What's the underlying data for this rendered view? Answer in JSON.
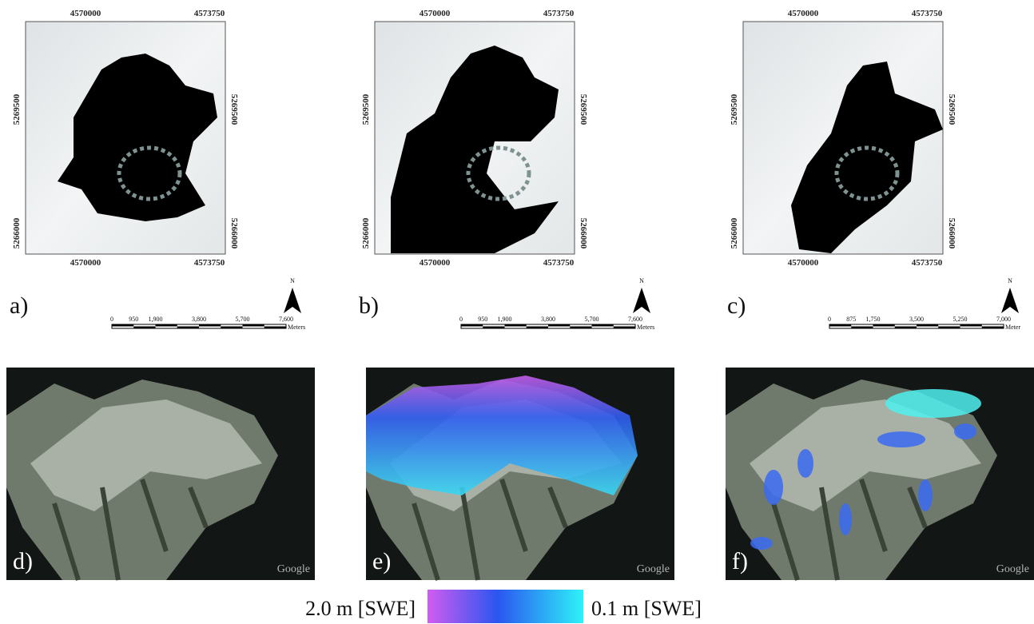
{
  "maps": [
    {
      "label": "a)",
      "top_ticks": [
        "4570000",
        "4573750"
      ],
      "bottom_ticks": [
        "4570000",
        "4573750"
      ],
      "left_ticks": [
        "5269500",
        "5266000"
      ],
      "right_ticks": [
        "5269500",
        "5266000"
      ],
      "north": "N",
      "scale_ticks": [
        "0",
        "950",
        "1,900",
        "3,800",
        "5,700",
        "7,600"
      ],
      "scale_unit": "Meters"
    },
    {
      "label": "b)",
      "top_ticks": [
        "4570000",
        "4573750"
      ],
      "bottom_ticks": [
        "4570000",
        "4573750"
      ],
      "left_ticks": [
        "5269500",
        "5266000"
      ],
      "right_ticks": [
        "5269500",
        "5266000"
      ],
      "north": "N",
      "scale_ticks": [
        "0",
        "950",
        "1,900",
        "3,800",
        "5,700",
        "7,600"
      ],
      "scale_unit": "Meters"
    },
    {
      "label": "c)",
      "top_ticks": [
        "4570000",
        "4573750"
      ],
      "bottom_ticks": [
        "4570000",
        "4573750"
      ],
      "left_ticks": [
        "5269500",
        "5266000"
      ],
      "right_ticks": [
        "5269500",
        "5266000"
      ],
      "north": "N",
      "scale_ticks": [
        "0",
        "875",
        "1,750",
        "3,500",
        "5,250",
        "7,000"
      ],
      "scale_unit": "Meter"
    }
  ],
  "photos": [
    {
      "label": "d)",
      "watermark": "Google"
    },
    {
      "label": "e)",
      "watermark": "Google"
    },
    {
      "label": "f)",
      "watermark": "Google"
    }
  ],
  "legend": {
    "high_label": "2.0 m [SWE]",
    "low_label": "0.1 m [SWE]"
  }
}
